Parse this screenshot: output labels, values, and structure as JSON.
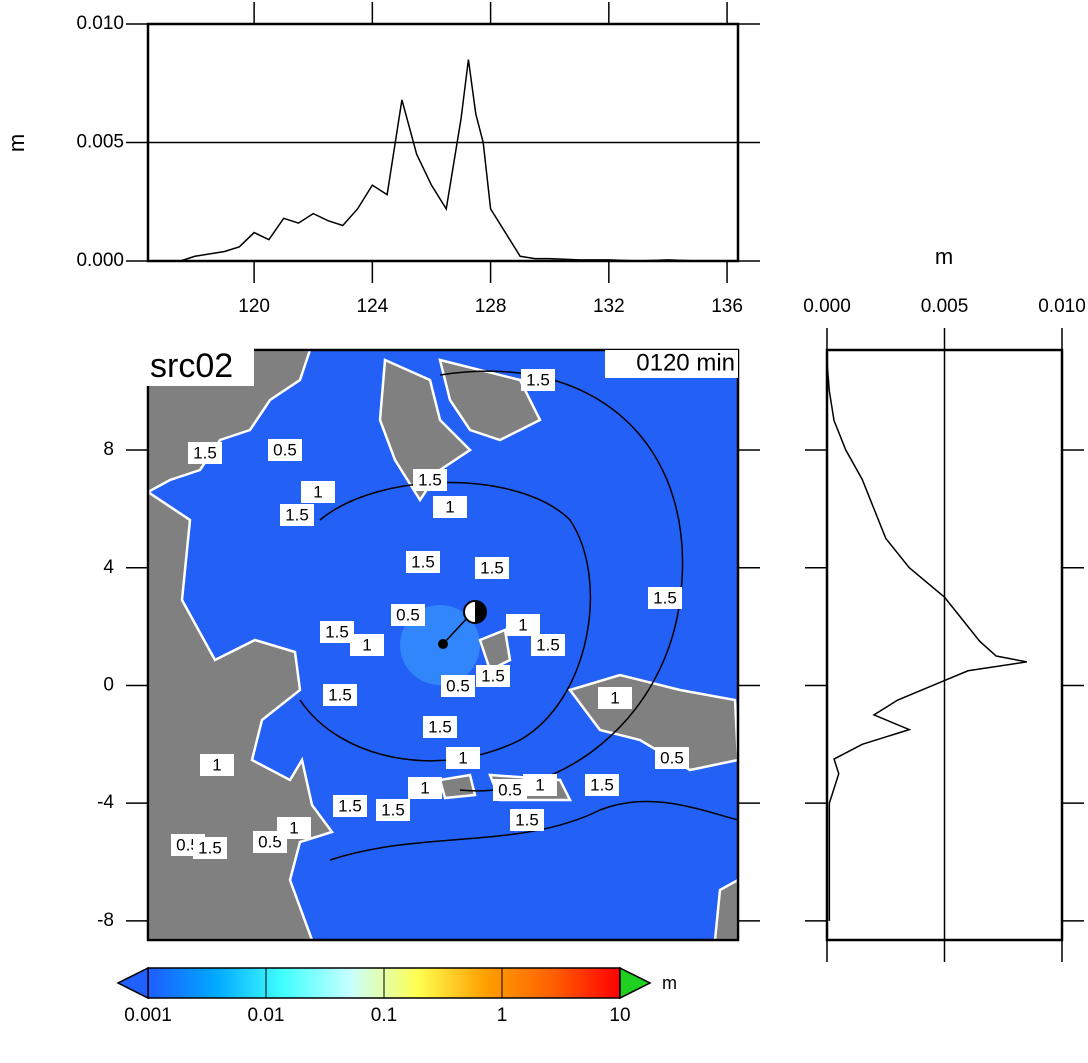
{
  "chart_data": [
    {
      "type": "line",
      "ylabel": "m",
      "x": [
        117,
        117.5,
        118,
        118.5,
        119,
        119.5,
        120,
        120.5,
        121,
        121.5,
        122,
        122.5,
        123,
        123.5,
        124,
        124.5,
        125,
        125.5,
        126,
        126.5,
        127,
        127.25,
        127.5,
        127.75,
        128,
        128.5,
        129,
        129.5,
        130,
        131,
        132,
        133,
        134,
        135,
        136
      ],
      "values": [
        0,
        0,
        0.0002,
        0.0003,
        0.0004,
        0.0006,
        0.0012,
        0.0009,
        0.0018,
        0.0016,
        0.002,
        0.0017,
        0.0015,
        0.0022,
        0.0032,
        0.0028,
        0.0068,
        0.0045,
        0.0032,
        0.0022,
        0.006,
        0.0085,
        0.0062,
        0.005,
        0.0022,
        0.0012,
        0.0002,
        0.0001,
        0.0001,
        5e-05,
        5e-05,
        0,
        5e-05,
        0,
        0
      ],
      "color": "#000000",
      "xlim": [
        116.41,
        136.37
      ],
      "xticks": [
        120,
        124,
        128,
        132,
        136
      ],
      "ylim": [
        0,
        0.01
      ],
      "yticks": [
        {
          "value": 0,
          "label": "0.000"
        },
        {
          "value": 0.005,
          "label": "0.005"
        },
        {
          "value": 0.01,
          "label": "0.010"
        }
      ],
      "grid": true
    },
    {
      "type": "profile",
      "xlabel": "m",
      "y": [
        11,
        10,
        9,
        8,
        7,
        6,
        5,
        4,
        3,
        2.5,
        2,
        1.5,
        1,
        0.8,
        0.5,
        0,
        -0.5,
        -1,
        -1.5,
        -2,
        -2.5,
        -3,
        -4,
        -6,
        -8
      ],
      "values": [
        0,
        0.0001,
        0.0003,
        0.0008,
        0.0015,
        0.002,
        0.0025,
        0.0035,
        0.005,
        0.0055,
        0.006,
        0.0065,
        0.0072,
        0.0085,
        0.006,
        0.0045,
        0.003,
        0.002,
        0.0035,
        0.0015,
        0.0003,
        0.0005,
        0.0001,
        0.0001,
        0.0001
      ],
      "color": "#000000",
      "xlim": [
        0,
        0.01
      ],
      "xticks": [
        {
          "value": 0,
          "label": "0.000"
        },
        {
          "value": 0.005,
          "label": "0.005"
        },
        {
          "value": 0.01,
          "label": "0.010"
        }
      ],
      "ylim": [
        -8.65,
        11.4
      ],
      "grid": true
    },
    {
      "type": "map",
      "title": "src02",
      "annotation": "0120 min",
      "xlim": [
        116.41,
        136.37
      ],
      "ylim": [
        -8.65,
        11.4
      ],
      "yticks": [
        -8,
        -4,
        0,
        4,
        8
      ],
      "sea_color": "#2360f5",
      "land_color": "#808080",
      "contour_labels": [
        1.5,
        1.5,
        0.5,
        1.5,
        1,
        1.5,
        1,
        1.5,
        1.5,
        1.5,
        0.5,
        1.5,
        1,
        1,
        1.5,
        0.5,
        1.5,
        1.5,
        1,
        1.5,
        1,
        0.5,
        1,
        1.5,
        1,
        0.5,
        1,
        1.5,
        1.5,
        1.5,
        0.5,
        1.5,
        0.5,
        1
      ]
    },
    {
      "type": "colorbar",
      "label": "m",
      "log_scale": true,
      "xlim": [
        0.001,
        10
      ],
      "xticks": [
        0.001,
        0.01,
        0.1,
        1,
        10
      ],
      "colors": [
        "#1e5cff",
        "#00a8ff",
        "#40ffff",
        "#c8ffff",
        "#ffff50",
        "#ffa000",
        "#ff6000",
        "#ff0000"
      ],
      "under_color": "#2060ff",
      "over_color": "#20d020"
    }
  ]
}
